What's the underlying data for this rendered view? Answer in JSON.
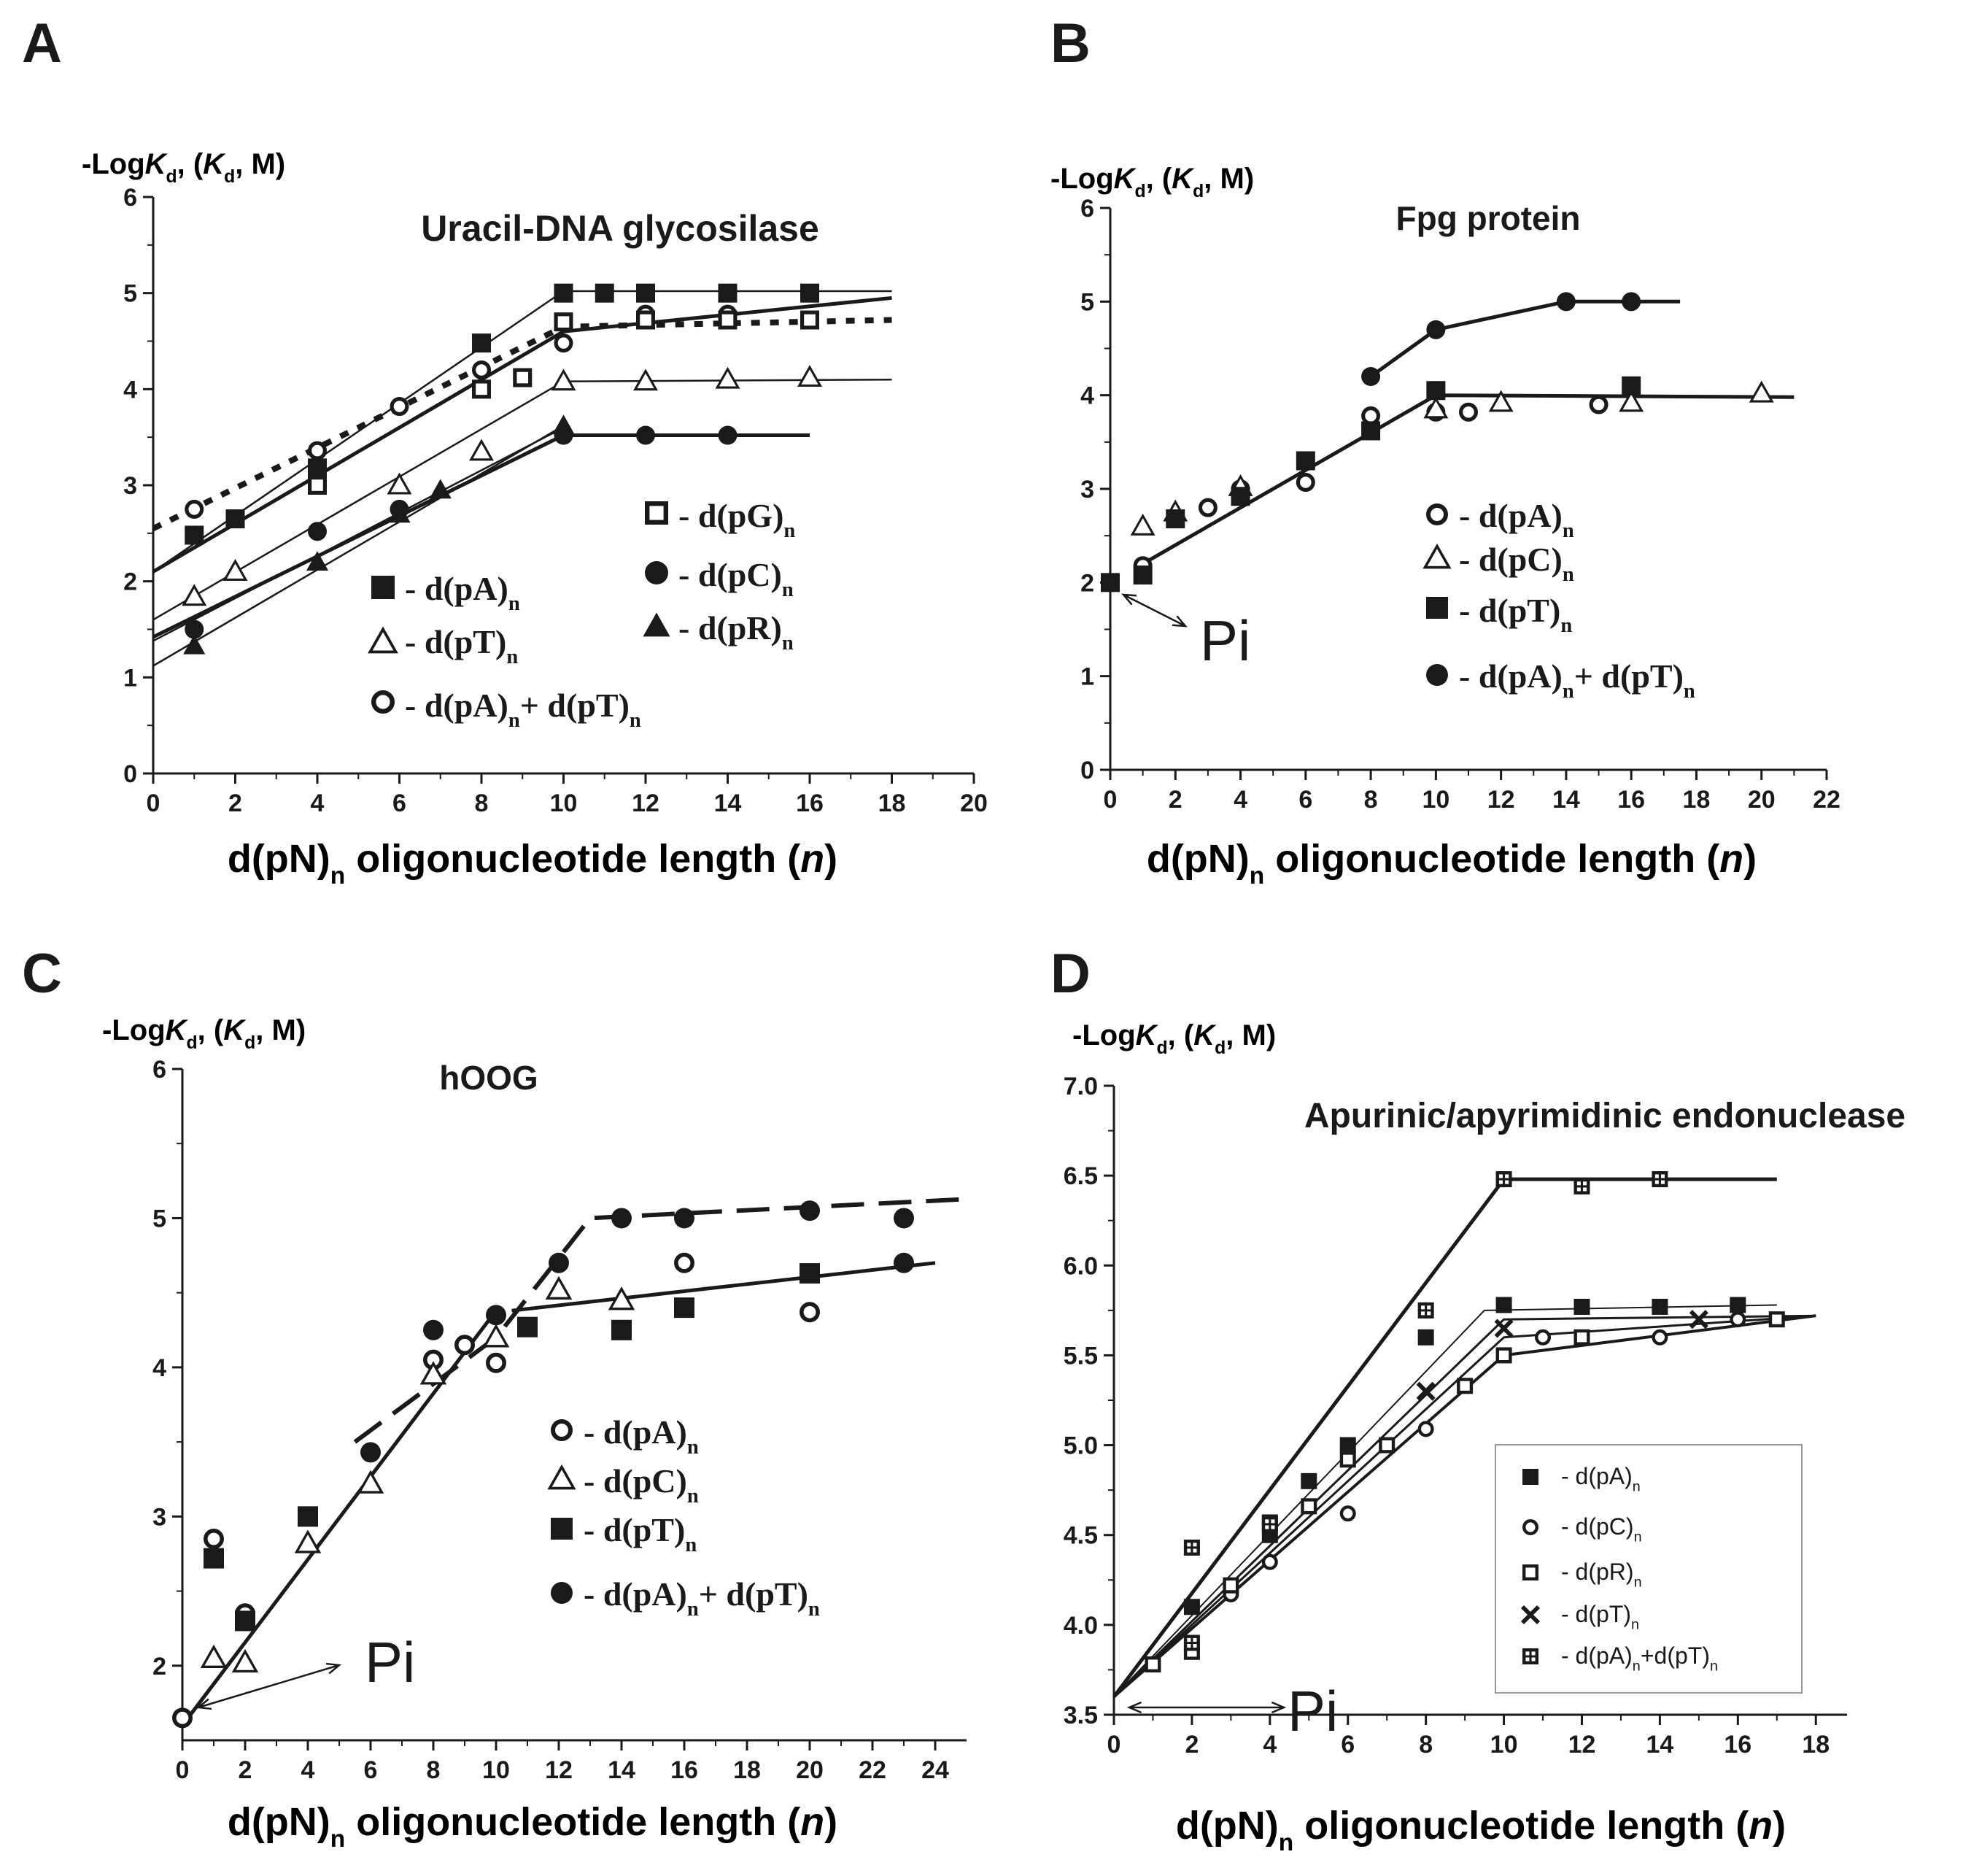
{
  "chart_data": [
    {
      "type": "scatter",
      "panel_label": "A",
      "title": "Uracil-DNA glycosilase",
      "ylabel": "-Log$K$_d_, ($K$_d_, M)",
      "xlabel": "d(pN)_n_ oligonucleotide length ($n$)",
      "xlim": [
        0,
        20
      ],
      "ylim": [
        0,
        6
      ],
      "xticks": [
        0,
        2,
        4,
        6,
        8,
        10,
        12,
        14,
        16,
        18,
        20
      ],
      "yticks": [
        0,
        1,
        2,
        3,
        4,
        5,
        6
      ],
      "series": [
        {
          "name": "- d(pA)_n_",
          "marker": "square-filled",
          "x": [
            1,
            2,
            4,
            8,
            10,
            11,
            12,
            14,
            16
          ],
          "y": [
            2.48,
            2.65,
            3.18,
            4.48,
            5.0,
            5.0,
            5.0,
            5.0,
            5.0
          ]
        },
        {
          "name": "- d(pT)_n_",
          "marker": "triangle-open",
          "x": [
            1,
            2,
            6,
            8,
            10,
            12,
            14,
            16
          ],
          "y": [
            1.84,
            2.1,
            3.0,
            3.35,
            4.08,
            4.08,
            4.1,
            4.12
          ]
        },
        {
          "name": "- d(pA)_n_+ d(pT)_n_",
          "marker": "circle-open",
          "x": [
            1,
            4,
            6,
            8,
            10,
            12,
            14
          ],
          "y": [
            2.75,
            3.36,
            3.82,
            4.2,
            4.48,
            4.78,
            4.78
          ]
        },
        {
          "name": "- d(pG)_n_",
          "marker": "square-open",
          "x": [
            4,
            8,
            9,
            10,
            12,
            14,
            16
          ],
          "y": [
            3.0,
            4.0,
            4.12,
            4.7,
            4.72,
            4.72,
            4.72
          ]
        },
        {
          "name": "- d(pC)_n_",
          "marker": "circle-filled",
          "x": [
            1,
            4,
            6,
            10,
            12,
            14
          ],
          "y": [
            1.5,
            2.52,
            2.75,
            3.52,
            3.52,
            3.52
          ]
        },
        {
          "name": "- d(pR)_n_",
          "marker": "triangle-filled",
          "x": [
            1,
            4,
            6,
            7,
            10
          ],
          "y": [
            1.33,
            2.2,
            2.7,
            2.95,
            3.62
          ]
        }
      ]
    },
    {
      "type": "scatter",
      "panel_label": "B",
      "title": "Fpg protein",
      "ylabel": "-Log$K$_d_, ($K$_d_, M)",
      "xlabel": "d(pN)_n_ oligonucleotide length ($n$)",
      "xlim": [
        0,
        22
      ],
      "ylim": [
        0,
        6
      ],
      "xticks": [
        0,
        2,
        4,
        6,
        8,
        10,
        12,
        14,
        16,
        18,
        20,
        22
      ],
      "yticks": [
        0,
        1,
        2,
        3,
        4,
        5,
        6
      ],
      "annotation": "Pi",
      "series": [
        {
          "name": "- d(pA)_n_",
          "marker": "circle-open",
          "x": [
            1,
            3,
            4,
            6,
            8,
            10,
            11,
            15
          ],
          "y": [
            2.18,
            2.8,
            3.0,
            3.07,
            3.78,
            3.82,
            3.82,
            3.9
          ]
        },
        {
          "name": "- d(pC)_n_",
          "marker": "triangle-open",
          "x": [
            1,
            2,
            4,
            10,
            12,
            16,
            20
          ],
          "y": [
            2.6,
            2.75,
            3.02,
            3.85,
            3.92,
            3.92,
            4.02
          ]
        },
        {
          "name": "- d(pT)_n_",
          "marker": "square-filled",
          "x": [
            0,
            1,
            2,
            4,
            6,
            8,
            10,
            16
          ],
          "y": [
            2.0,
            2.08,
            2.68,
            2.92,
            3.3,
            3.62,
            4.05,
            4.1
          ]
        },
        {
          "name": "- d(pA)_n_+ d(pT)_n_",
          "marker": "circle-filled",
          "x": [
            8,
            10,
            14,
            16
          ],
          "y": [
            4.2,
            4.7,
            5.0,
            5.0
          ]
        }
      ]
    },
    {
      "type": "scatter",
      "panel_label": "C",
      "title": "hOOG",
      "ylabel": "-Log$K$_d_, ($K$_d_, M)",
      "xlabel": "d(pN)_n_ oligonucleotide length ($n$)",
      "xlim": [
        0,
        25
      ],
      "ylim": [
        1.5,
        6
      ],
      "xticks": [
        0,
        2,
        4,
        6,
        8,
        10,
        12,
        14,
        16,
        18,
        20,
        22,
        24
      ],
      "yticks": [
        2,
        3,
        4,
        5,
        6
      ],
      "annotation": "Pi",
      "series": [
        {
          "name": "- d(pA)_n_",
          "marker": "circle-open",
          "x": [
            0,
            1,
            2,
            8,
            9,
            10,
            16,
            20
          ],
          "y": [
            1.65,
            2.85,
            2.35,
            4.05,
            4.15,
            4.03,
            4.7,
            4.37
          ]
        },
        {
          "name": "- d(pC)_n_",
          "marker": "triangle-open",
          "x": [
            1,
            2,
            4,
            6,
            8,
            10,
            12,
            14
          ],
          "y": [
            2.05,
            2.02,
            2.82,
            3.22,
            3.95,
            4.2,
            4.52,
            4.45
          ]
        },
        {
          "name": "- d(pT)_n_",
          "marker": "square-filled",
          "x": [
            1,
            2,
            4,
            11,
            14,
            16,
            20
          ],
          "y": [
            2.72,
            2.3,
            3.0,
            4.27,
            4.25,
            4.4,
            4.63
          ]
        },
        {
          "name": "- d(pA)_n_+ d(pT)_n_",
          "marker": "circle-filled",
          "x": [
            6,
            8,
            10,
            12,
            14,
            16,
            20,
            23,
            23
          ],
          "y": [
            3.43,
            4.25,
            4.35,
            4.7,
            5.0,
            5.0,
            5.05,
            5.0,
            4.7
          ]
        }
      ]
    },
    {
      "type": "scatter",
      "panel_label": "D",
      "title": "Apurinic/apyrimidinic endonuclease",
      "ylabel": "-Log$K$_d_, ($K$_d_, M)",
      "xlabel": "d(pN)_n_ oligonucleotide length ($n$)",
      "xlim": [
        0,
        18.8
      ],
      "ylim": [
        3.5,
        7.0
      ],
      "xticks": [
        0,
        2,
        4,
        6,
        8,
        10,
        12,
        14,
        16,
        18
      ],
      "yticks": [
        3.5,
        4.0,
        4.5,
        5.0,
        5.5,
        6.0,
        6.5,
        7.0
      ],
      "annotation": "Pi",
      "series": [
        {
          "name": "- d(pA)_n_",
          "marker": "square-filled",
          "x": [
            2,
            4,
            5,
            6,
            8,
            10,
            12,
            14,
            16
          ],
          "y": [
            4.1,
            4.5,
            4.8,
            5.0,
            5.6,
            5.78,
            5.77,
            5.77,
            5.78
          ]
        },
        {
          "name": "- d(pC)_n_",
          "marker": "circle-open",
          "x": [
            3,
            4,
            6,
            8,
            11,
            14,
            16
          ],
          "y": [
            4.17,
            4.35,
            4.62,
            5.09,
            5.6,
            5.6,
            5.7
          ]
        },
        {
          "name": "- d(pR)_n_",
          "marker": "square-open",
          "x": [
            1,
            2,
            3,
            4,
            5,
            6,
            7,
            9,
            10,
            12,
            17
          ],
          "y": [
            3.78,
            3.85,
            4.22,
            4.57,
            4.66,
            4.92,
            5.0,
            5.33,
            5.5,
            5.6,
            5.7
          ]
        },
        {
          "name": "- d(pT)_n_",
          "marker": "cross",
          "x": [
            8,
            10,
            15
          ],
          "y": [
            5.3,
            5.65,
            5.7
          ]
        },
        {
          "name": "- d(pA)_n_+d(pT)_n_",
          "marker": "square-plus",
          "x": [
            2,
            2,
            4,
            8,
            10,
            12,
            14
          ],
          "y": [
            4.43,
            3.9,
            4.56,
            5.75,
            6.48,
            6.44,
            6.48
          ]
        }
      ]
    }
  ]
}
